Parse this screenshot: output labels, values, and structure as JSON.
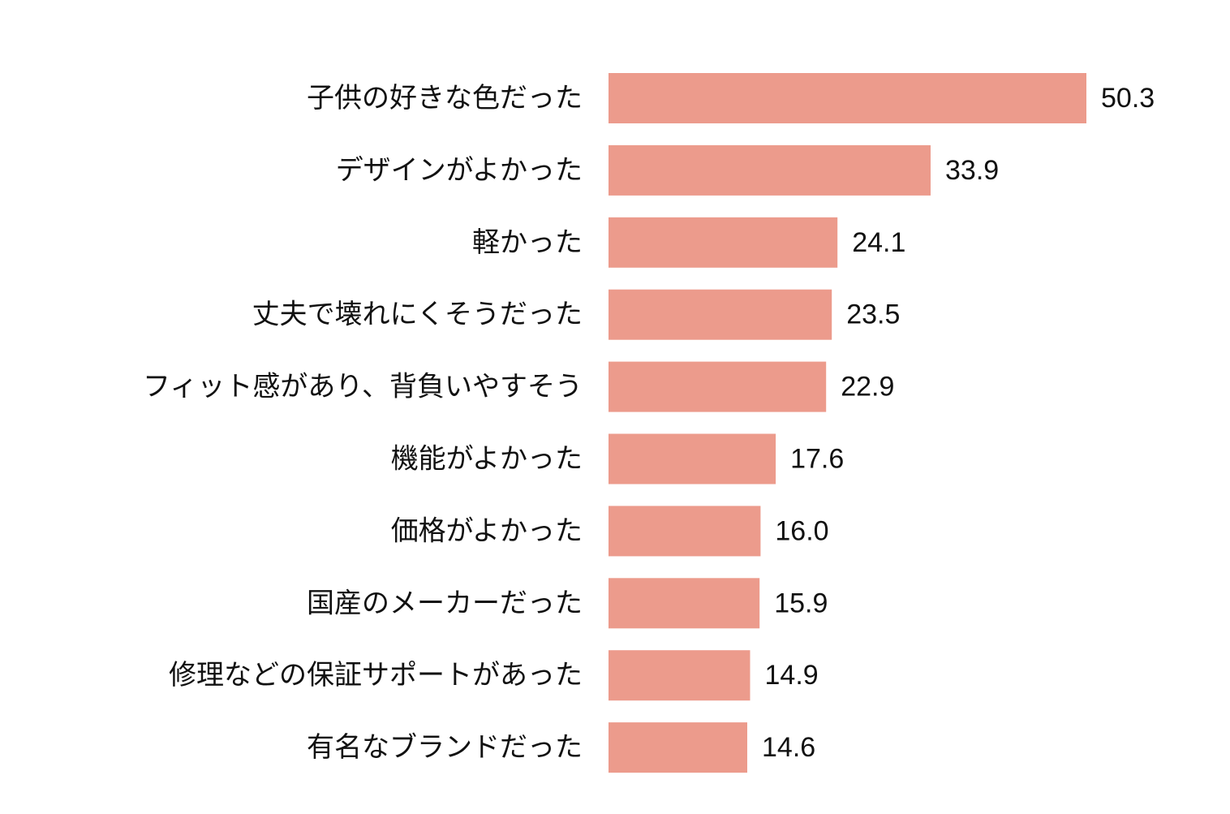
{
  "chart_data": {
    "type": "bar",
    "orientation": "horizontal",
    "categories": [
      "子供の好きな色だった",
      "デザインがよかった",
      "軽かった",
      "丈夫で壊れにくそうだった",
      "フィット感があり、背負いやすそう",
      "機能がよかった",
      "価格がよかった",
      "国産のメーカーだった",
      "修理などの保証サポートがあった",
      "有名なブランドだった"
    ],
    "values": [
      50.3,
      33.9,
      24.1,
      23.5,
      22.9,
      17.6,
      16.0,
      15.9,
      14.9,
      14.6
    ],
    "value_labels": [
      "50.3",
      "33.9",
      "24.1",
      "23.5",
      "22.9",
      "17.6",
      "16.0",
      "15.9",
      "14.9",
      "14.6"
    ],
    "title": "",
    "xlabel": "",
    "ylabel": "",
    "xlim": [
      0,
      50.3
    ],
    "grid": false,
    "legend": "none",
    "bar_color": "#ec9b8c"
  }
}
